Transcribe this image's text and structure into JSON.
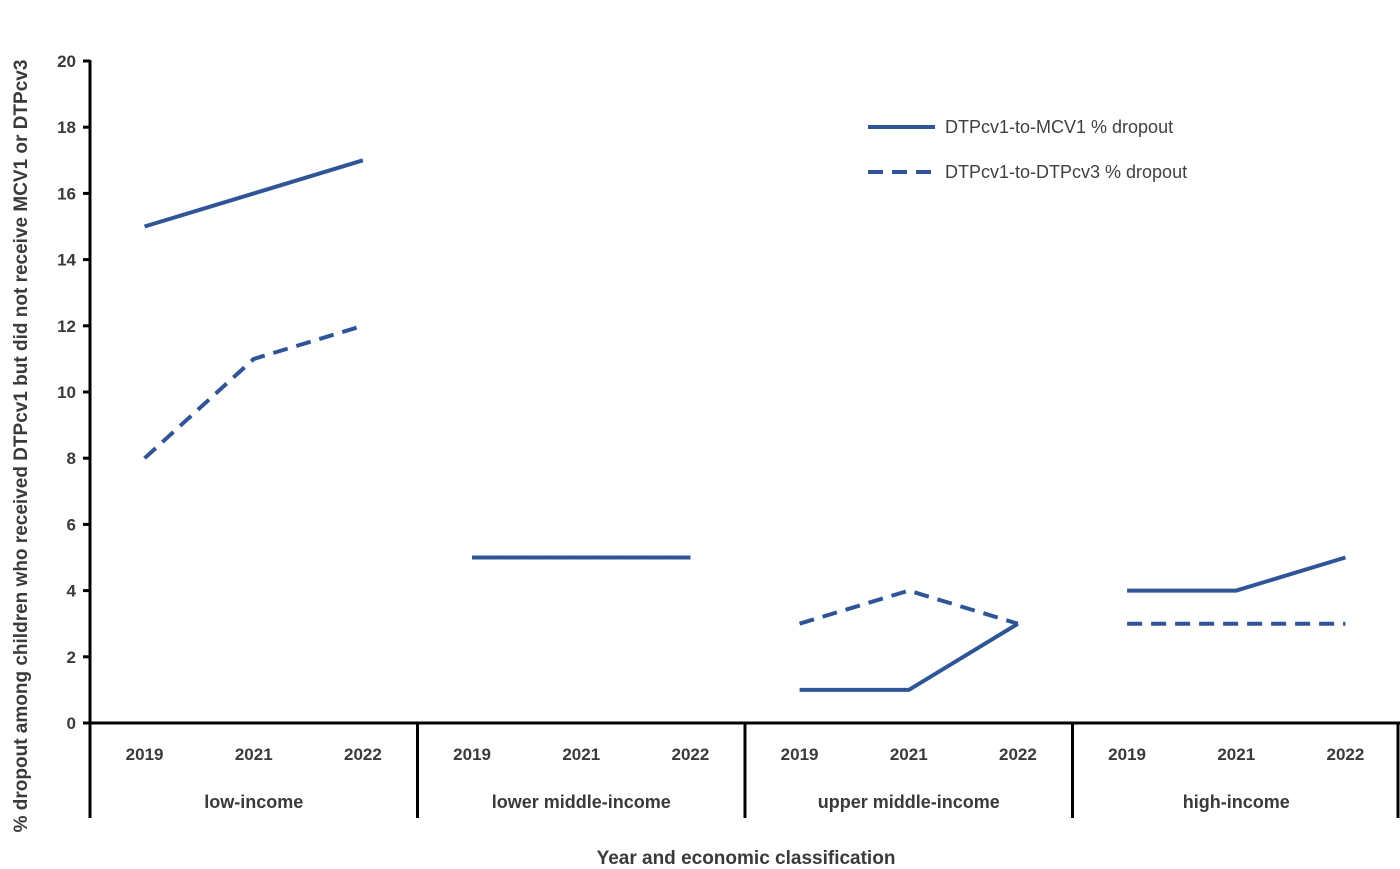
{
  "chart_data": {
    "type": "line",
    "title": "",
    "xlabel": "Year and economic classification",
    "ylabel": "% dropout among children who received DTPcv1 but did not receive MCV1 or DTPcv3",
    "ylim": [
      0,
      20
    ],
    "yticks": [
      "0",
      "2",
      "4",
      "6",
      "8",
      "10",
      "12",
      "14",
      "16",
      "18",
      "20"
    ],
    "groups": [
      {
        "label": "low-income",
        "years": [
          "2019",
          "2021",
          "2022"
        ]
      },
      {
        "label": "lower middle-income",
        "years": [
          "2019",
          "2021",
          "2022"
        ]
      },
      {
        "label": "upper middle-income",
        "years": [
          "2019",
          "2021",
          "2022"
        ]
      },
      {
        "label": "high-income",
        "years": [
          "2019",
          "2021",
          "2022"
        ]
      }
    ],
    "series": [
      {
        "name": "DTPcv1-to-MCV1 % dropout",
        "style": "solid",
        "color": "#2F5597",
        "values": [
          [
            15,
            16,
            17
          ],
          [
            5,
            5,
            5
          ],
          [
            1,
            1,
            3
          ],
          [
            4,
            4,
            5
          ]
        ]
      },
      {
        "name": "DTPcv1-to-DTPcv3 % dropout",
        "style": "dashed",
        "color": "#2F5597",
        "values": [
          [
            8,
            11,
            12
          ],
          [
            5,
            5,
            5
          ],
          [
            3,
            4,
            3
          ],
          [
            3,
            3,
            3
          ]
        ]
      }
    ],
    "legend_position": "top-right",
    "grid": false
  }
}
